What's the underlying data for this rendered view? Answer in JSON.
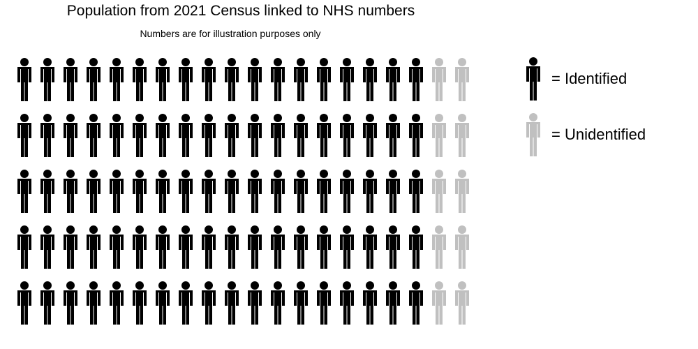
{
  "chart_data": {
    "type": "pictogram",
    "title": "Population from 2021 Census linked to NHS numbers",
    "subtitle": "Numbers are for illustration purposes only",
    "rows": 5,
    "columns": 20,
    "total_icons": 100,
    "series": [
      {
        "name": "Identified",
        "count": 90,
        "per_row": 18,
        "color": "#000000"
      },
      {
        "name": "Unidentified",
        "count": 10,
        "per_row": 2,
        "color": "#c0c0c0"
      }
    ],
    "legend": {
      "placement": "right",
      "identified_label": "= Identified",
      "unidentified_label": "= Unidentified"
    }
  }
}
